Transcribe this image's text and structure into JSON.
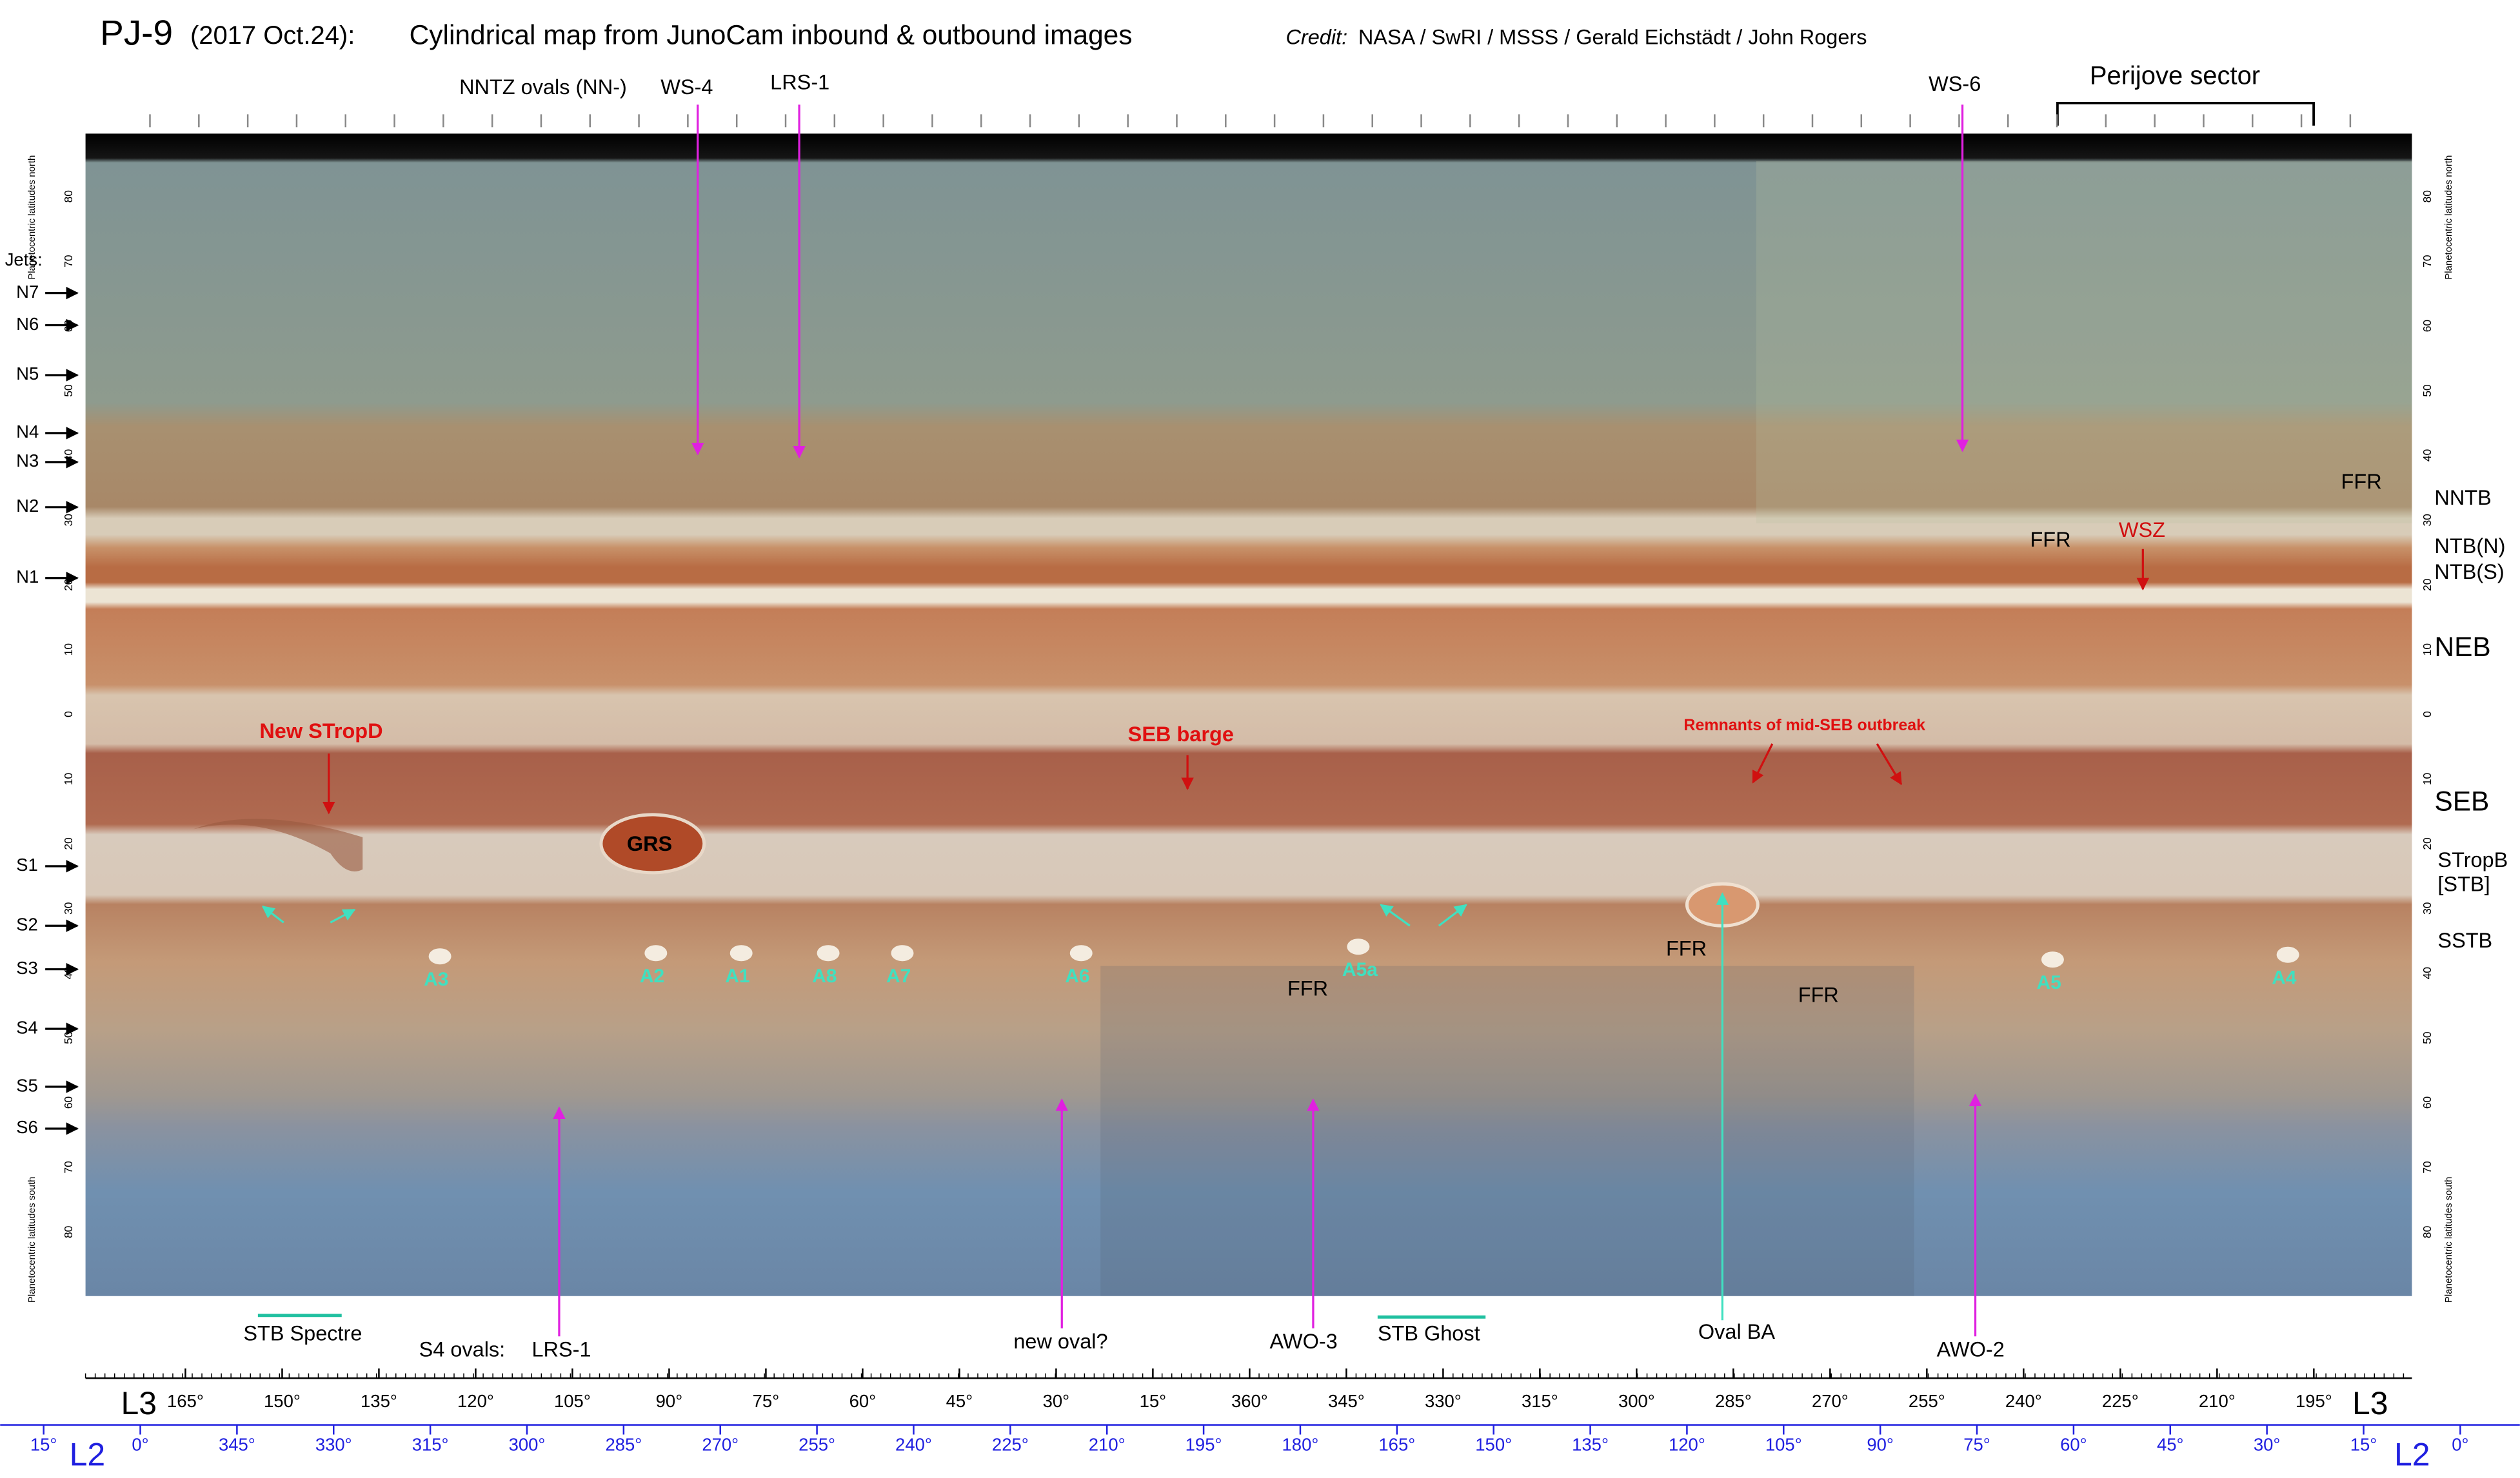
{
  "header": {
    "title": "PJ-9",
    "date": "(2017 Oct.24):",
    "subtitle": "Cylindrical map from JunoCam inbound & outbound images",
    "credit_label": "Credit:",
    "credit": "NASA / SwRI / MSSS / Gerald Eichstädt / John Rogers"
  },
  "top_labels": [
    "NNTZ ovals (NN-)",
    "WS-4",
    "LRS-1",
    "WS-6",
    "Perijove sector"
  ],
  "jets": {
    "title": "Jets:",
    "labels": [
      "N7",
      "N6",
      "N5",
      "N4",
      "N3",
      "N2",
      "N1",
      "S1",
      "S2",
      "S3",
      "S4",
      "S5",
      "S6"
    ]
  },
  "belts": [
    "NNTB",
    "NTB(N)",
    "NTB(S)",
    "NEB",
    "SEB",
    "STropB",
    "[STB]",
    "SSTB"
  ],
  "red_labels": [
    "New STropD",
    "SEB barge",
    "Remnants of mid-SEB outbreak",
    "WSZ"
  ],
  "grs": "GRS",
  "ffr": [
    "FFR",
    "FFR",
    "FFR",
    "FFR",
    "FFR"
  ],
  "ovals": [
    "A3",
    "A2",
    "A1",
    "A8",
    "A7",
    "A6",
    "A5a",
    "A5",
    "A4"
  ],
  "bottom_labels": [
    "STB Spectre",
    "S4 ovals:",
    "LRS-1",
    "new oval?",
    "AWO-3",
    "STB Ghost",
    "Oval BA",
    "AWO-2"
  ],
  "latitude_axis": {
    "north_caption": "Planetocentric latitudes north",
    "south_caption": "Planetocentric latitudes south",
    "ticks": [
      80,
      70,
      60,
      50,
      40,
      30,
      20,
      10,
      0,
      10,
      20,
      30,
      40,
      50,
      60,
      70,
      80
    ]
  },
  "l3": {
    "label": "L3",
    "ticks": [
      "165°",
      "150°",
      "135°",
      "120°",
      "105°",
      "90°",
      "75°",
      "60°",
      "45°",
      "30°",
      "15°",
      "360°",
      "345°",
      "330°",
      "315°",
      "300°",
      "285°",
      "270°",
      "255°",
      "240°",
      "225°",
      "210°",
      "195°"
    ]
  },
  "l2": {
    "label": "L2",
    "ticks": [
      "15°",
      "0°",
      "345°",
      "330°",
      "315°",
      "300°",
      "285°",
      "270°",
      "255°",
      "240°",
      "225°",
      "210°",
      "195°",
      "180°",
      "165°",
      "150°",
      "135°",
      "120°",
      "105°",
      "90°",
      "75°",
      "60°",
      "45°",
      "30°",
      "15°",
      "0°"
    ]
  }
}
